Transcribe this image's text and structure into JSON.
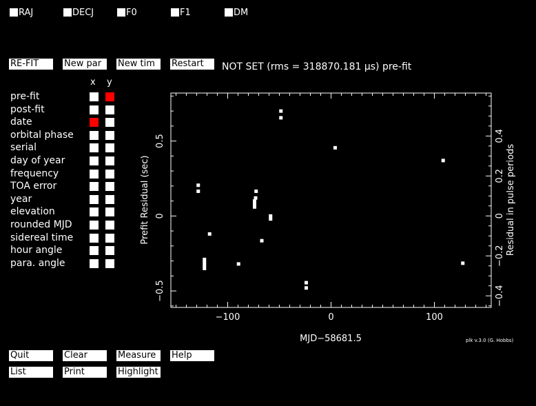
{
  "fit_params": [
    {
      "label": "RAJ"
    },
    {
      "label": "DECJ"
    },
    {
      "label": "F0"
    },
    {
      "label": "F1"
    },
    {
      "label": "DM"
    }
  ],
  "action_buttons": {
    "refit": "RE-FIT",
    "new_par": "New par",
    "new_tim": "New tim",
    "restart": "Restart"
  },
  "status_text": "NOT SET (rms = 318870.181 μs) pre-fit",
  "axis_headers": {
    "x": "x",
    "y": "y"
  },
  "plot_options": [
    {
      "label": "pre-fit",
      "x": false,
      "y": true
    },
    {
      "label": "post-fit",
      "x": false,
      "y": false
    },
    {
      "label": "date",
      "x": true,
      "y": false
    },
    {
      "label": "orbital phase",
      "x": false,
      "y": false
    },
    {
      "label": "serial",
      "x": false,
      "y": false
    },
    {
      "label": "day of year",
      "x": false,
      "y": false
    },
    {
      "label": "frequency",
      "x": false,
      "y": false
    },
    {
      "label": "TOA error",
      "x": false,
      "y": false
    },
    {
      "label": "year",
      "x": false,
      "y": false
    },
    {
      "label": "elevation",
      "x": false,
      "y": false
    },
    {
      "label": "rounded MJD",
      "x": false,
      "y": false
    },
    {
      "label": "sidereal time",
      "x": false,
      "y": false
    },
    {
      "label": "hour angle",
      "x": false,
      "y": false
    },
    {
      "label": "para. angle",
      "x": false,
      "y": false
    }
  ],
  "bottom_buttons": {
    "quit": "Quit",
    "clear": "Clear",
    "measure": "Measure",
    "help": "Help",
    "list": "List",
    "print": "Print",
    "highlight": "Highlight"
  },
  "credit": "plk v.3.0 (G. Hobbs)",
  "chart_data": {
    "type": "scatter",
    "xlabel": "MJD−58681.5",
    "ylabel": "Prefit Residual (sec)",
    "y2label": "Residual in pulse periods",
    "xlim": [
      -155,
      155
    ],
    "ylim": [
      -0.61,
      0.82
    ],
    "y2lim": [
      -0.458,
      0.615
    ],
    "xticks": [
      -100,
      0,
      100
    ],
    "xtick_labels": [
      "−100",
      "0",
      "100"
    ],
    "yticks": [
      -0.5,
      0,
      0.5
    ],
    "ytick_labels": [
      "−0.5",
      "0",
      "0.5"
    ],
    "y2ticks": [
      -0.4,
      -0.2,
      0,
      0.2,
      0.4
    ],
    "y2tick_labels": [
      "−0.4",
      "−0.2",
      "0",
      "0.2",
      "0.4"
    ],
    "points": [
      {
        "x": -48.5,
        "y": 0.7
      },
      {
        "x": -48.5,
        "y": 0.655
      },
      {
        "x": 4.0,
        "y": 0.455
      },
      {
        "x": 108.5,
        "y": 0.37
      },
      {
        "x": -128.5,
        "y": 0.205
      },
      {
        "x": -128.5,
        "y": 0.165
      },
      {
        "x": -72.5,
        "y": 0.165
      },
      {
        "x": -73.0,
        "y": 0.12
      },
      {
        "x": -74.0,
        "y": 0.1
      },
      {
        "x": -74.0,
        "y": 0.08
      },
      {
        "x": -74.0,
        "y": 0.06
      },
      {
        "x": -58.5,
        "y": 0.0
      },
      {
        "x": -58.5,
        "y": -0.02
      },
      {
        "x": -117.5,
        "y": -0.12
      },
      {
        "x": -67.0,
        "y": -0.165
      },
      {
        "x": -122.5,
        "y": -0.29
      },
      {
        "x": -122.5,
        "y": -0.31
      },
      {
        "x": -122.5,
        "y": -0.33
      },
      {
        "x": -122.5,
        "y": -0.35
      },
      {
        "x": -89.5,
        "y": -0.32
      },
      {
        "x": 127.5,
        "y": -0.315
      },
      {
        "x": -24.0,
        "y": -0.445
      },
      {
        "x": -24.0,
        "y": -0.48
      }
    ]
  }
}
